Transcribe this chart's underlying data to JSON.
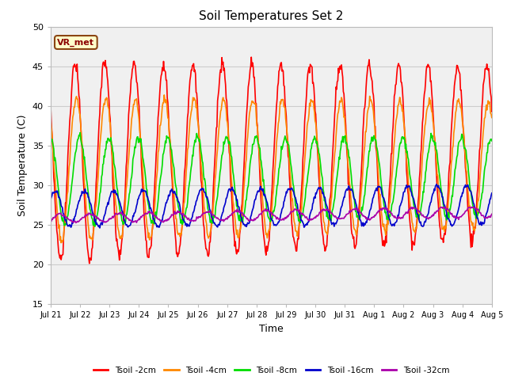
{
  "title": "Soil Temperatures Set 2",
  "xlabel": "Time",
  "ylabel": "Soil Temperature (C)",
  "ylim": [
    15,
    50
  ],
  "yticks": [
    15,
    20,
    25,
    30,
    35,
    40,
    45,
    50
  ],
  "fig_bg_color": "#ffffff",
  "plot_bg_color": "#f0f0f0",
  "series_colors": {
    "2cm": "#ff0000",
    "4cm": "#ff8800",
    "8cm": "#00dd00",
    "16cm": "#0000cc",
    "32cm": "#aa00aa"
  },
  "series_labels": {
    "2cm": "Tsoil -2cm",
    "4cm": "Tsoil -4cm",
    "8cm": "Tsoil -8cm",
    "16cm": "Tsoil -16cm",
    "32cm": "Tsoil -32cm"
  },
  "annotation_text": "VR_met",
  "x_tick_labels": [
    "Jul 21",
    "Jul 22",
    "Jul 23",
    "Jul 24",
    "Jul 25",
    "Jul 26",
    "Jul 27",
    "Jul 28",
    "Jul 29",
    "Jul 30",
    "Jul 31",
    "Aug 1",
    "Aug 2",
    "Aug 3",
    "Aug 4",
    "Aug 5"
  ],
  "line_width": 1.2,
  "grid_color": "#cccccc"
}
